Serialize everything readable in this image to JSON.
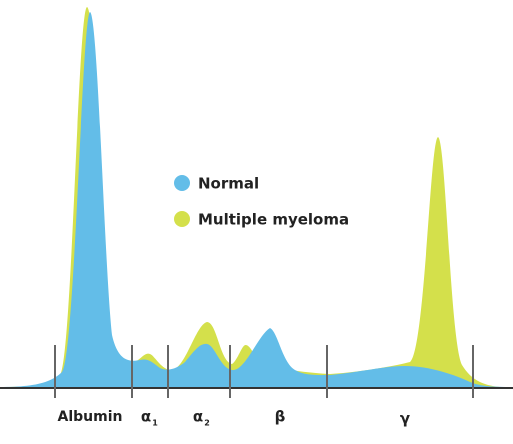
{
  "legend": {
    "items": [
      {
        "label": "Normal",
        "color": "#63bde8"
      },
      {
        "label": "Multiple myeloma",
        "color": "#d4e04b"
      }
    ]
  },
  "regions": [
    {
      "symbol": "Albumin"
    },
    {
      "symbol": "α",
      "sub": "1"
    },
    {
      "symbol": "α",
      "sub": "2"
    },
    {
      "symbol": "β"
    },
    {
      "symbol": "γ"
    }
  ]
}
